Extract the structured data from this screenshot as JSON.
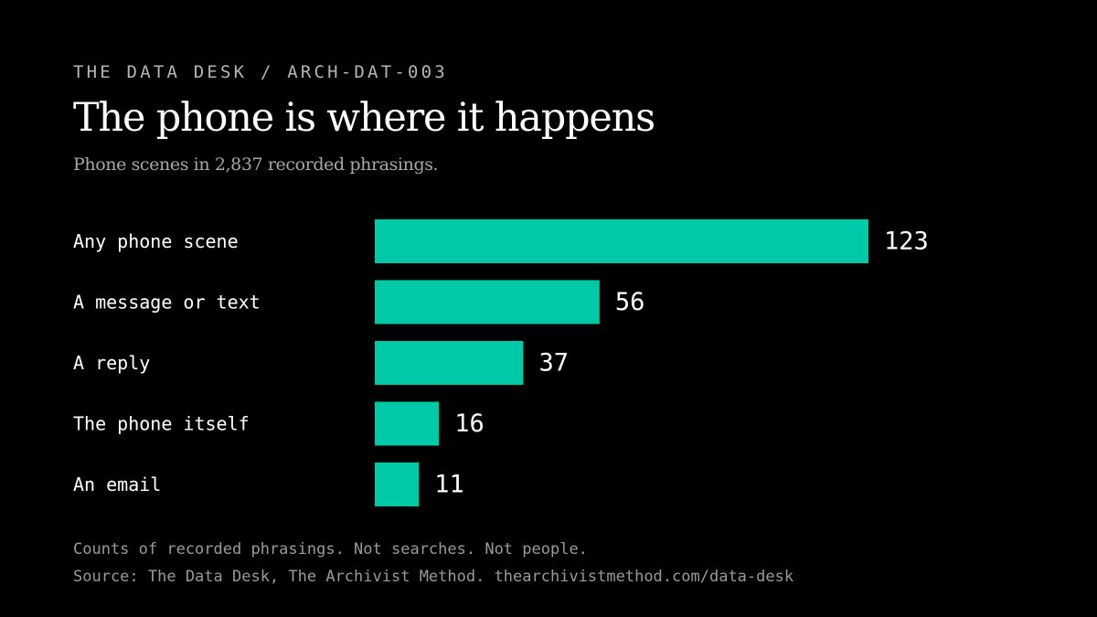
{
  "header": {
    "kicker": "THE DATA DESK / ARCH-DAT-003",
    "title": "The phone is where it happens",
    "subtitle": "Phone scenes in 2,837 recorded phrasings."
  },
  "footer": {
    "note": "Counts of recorded phrasings. Not searches. Not people.",
    "source": "Source: The Data Desk, The Archivist Method. thearchivistmethod.com/data-desk"
  },
  "colors": {
    "background": "#000000",
    "bar": "#00c9a7",
    "label": "#ffffff"
  },
  "chart_data": {
    "type": "bar",
    "orientation": "horizontal",
    "title": "The phone is where it happens",
    "subtitle": "Phone scenes in 2,837 recorded phrasings.",
    "categories": [
      "Any phone scene",
      "A message or text",
      "A reply",
      "The phone itself",
      "An email"
    ],
    "values": [
      123,
      56,
      37,
      16,
      11
    ],
    "xlim": [
      0,
      123
    ],
    "grid": false,
    "legend": "none",
    "data_labels": true
  }
}
